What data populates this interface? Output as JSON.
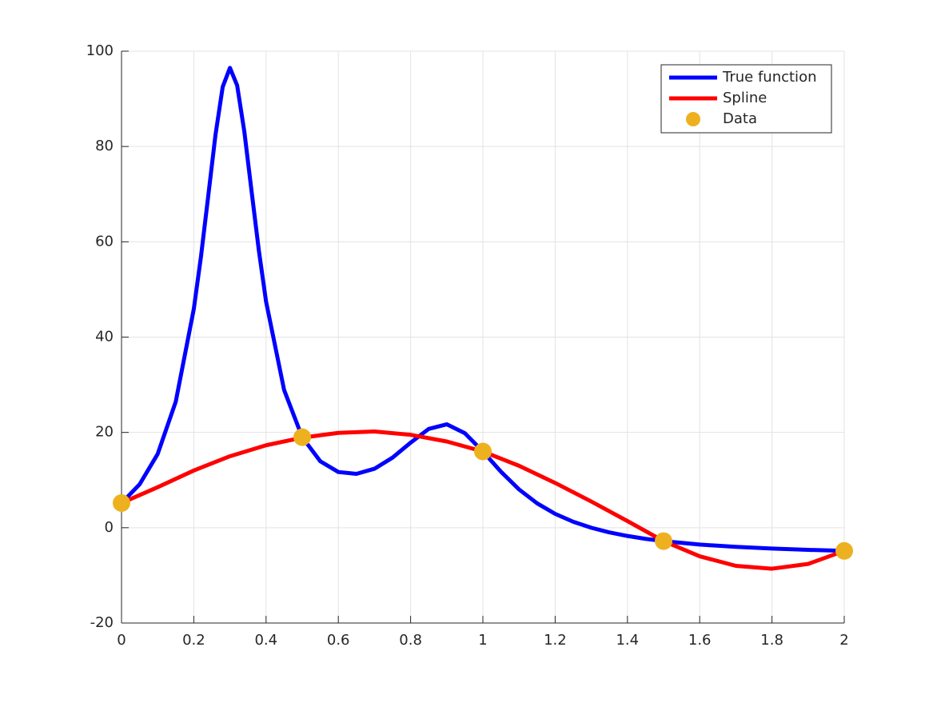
{
  "chart_data": {
    "type": "line",
    "xlim": [
      0,
      2
    ],
    "xticks": [
      0,
      0.2,
      0.4,
      0.6,
      0.8,
      1,
      1.2,
      1.4,
      1.6,
      1.8,
      2
    ],
    "ylim": [
      -20,
      100
    ],
    "yticks": [
      -20,
      0,
      20,
      40,
      60,
      80,
      100
    ],
    "grid": true,
    "legend": "top-right",
    "series": [
      {
        "name": "True function",
        "color": "#0000ff",
        "style": "line",
        "x": [
          0,
          0.05,
          0.1,
          0.15,
          0.2,
          0.22,
          0.24,
          0.26,
          0.28,
          0.3,
          0.32,
          0.34,
          0.36,
          0.38,
          0.4,
          0.45,
          0.5,
          0.55,
          0.6,
          0.65,
          0.7,
          0.75,
          0.8,
          0.85,
          0.9,
          0.95,
          1,
          1.05,
          1.1,
          1.15,
          1.2,
          1.25,
          1.3,
          1.35,
          1.4,
          1.45,
          1.5,
          1.6,
          1.7,
          1.8,
          1.9,
          2
        ],
        "values": [
          5.18,
          9.1,
          15.47,
          26.43,
          45.89,
          56.97,
          69.63,
          82.43,
          92.51,
          96.5,
          92.81,
          83.04,
          70.54,
          58.2,
          47.45,
          28.89,
          19,
          13.95,
          11.69,
          11.3,
          12.38,
          14.71,
          17.85,
          20.73,
          21.7,
          19.84,
          16,
          11.75,
          8.04,
          5.12,
          2.91,
          1.25,
          -0.01,
          -0.98,
          -1.73,
          -2.33,
          -2.81,
          -3.53,
          -4.02,
          -4.38,
          -4.65,
          -4.86
        ]
      },
      {
        "name": "Spline",
        "color": "#ff0000",
        "style": "line",
        "x": [
          0,
          0.1,
          0.2,
          0.3,
          0.4,
          0.5,
          0.6,
          0.7,
          0.8,
          0.9,
          1,
          1.1,
          1.2,
          1.3,
          1.4,
          1.5,
          1.6,
          1.7,
          1.8,
          1.9,
          2
        ],
        "values": [
          5.18,
          8.5,
          12,
          15,
          17.3,
          18.9,
          19.9,
          20.2,
          19.5,
          18.1,
          16,
          13,
          9.4,
          5.5,
          1.4,
          -2.8,
          -6,
          -8,
          -8.6,
          -7.6,
          -4.86
        ]
      },
      {
        "name": "Data",
        "color": "#edb120",
        "style": "marker",
        "x": [
          0,
          0.5,
          1,
          1.5,
          2
        ],
        "values": [
          5.18,
          19,
          16,
          -2.81,
          -4.86
        ]
      }
    ]
  }
}
